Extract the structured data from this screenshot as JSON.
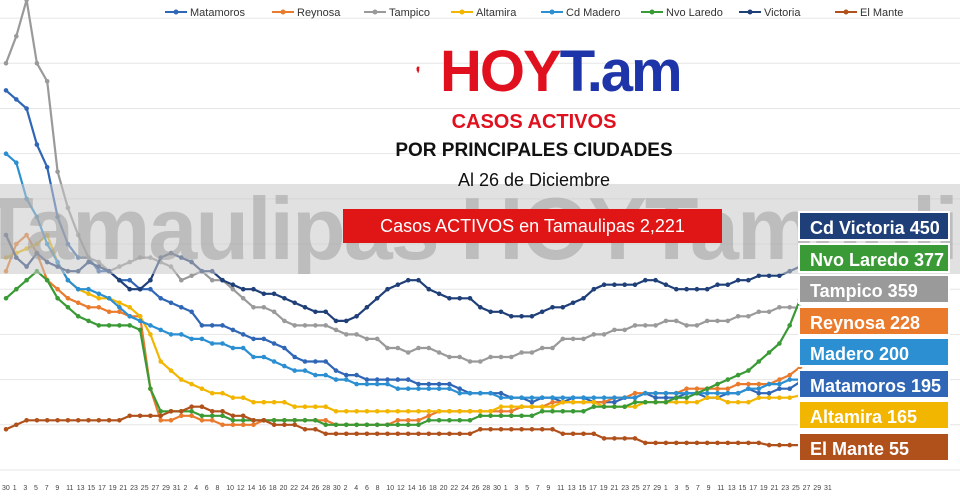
{
  "header": {
    "logo_text_a": "HOY",
    "logo_text_b": "T.am",
    "title": "CASOS ACTIVOS",
    "subtitle": "POR PRINCIPALES CIUDADES",
    "date": "Al 26 de Diciembre",
    "banner": "Casos ACTIVOS en Tamaulipas  2,221",
    "watermark": "Tamaulipas HOYTamaulipas HOYTam"
  },
  "totals": [
    {
      "label": "Cd Victoria 450",
      "color": "#1f3f78"
    },
    {
      "label": "Nvo Laredo 377",
      "color": "#3a9a35"
    },
    {
      "label": "Tampico 359",
      "color": "#9a9a9a"
    },
    {
      "label": "Reynosa 228",
      "color": "#ea7a2c"
    },
    {
      "label": "Madero 200",
      "color": "#2b8fd2"
    },
    {
      "label": "Matamoros 195",
      "color": "#2f66b6"
    },
    {
      "label": "Altamira 165",
      "color": "#f2b600"
    },
    {
      "label": "El Mante 55",
      "color": "#b0501a"
    }
  ],
  "chart_data": {
    "type": "line",
    "x_tick_labels": [
      "30",
      "1",
      "3",
      "5",
      "7",
      "9",
      "11",
      "13",
      "15",
      "17",
      "19",
      "21",
      "23",
      "25",
      "27",
      "29",
      "31",
      "2",
      "4",
      "6",
      "8",
      "10",
      "12",
      "14",
      "16",
      "18",
      "20",
      "22",
      "24",
      "26",
      "28",
      "30",
      "2",
      "4",
      "6",
      "8",
      "10",
      "12",
      "14",
      "16",
      "18",
      "20",
      "22",
      "24",
      "26",
      "28",
      "30",
      "1",
      "3",
      "5",
      "7",
      "9",
      "11",
      "13",
      "15",
      "17",
      "19",
      "21",
      "23",
      "25",
      "27",
      "29",
      "1",
      "3",
      "5",
      "7",
      "9",
      "11",
      "13",
      "15",
      "17",
      "19",
      "21",
      "23",
      "25",
      "27",
      "29",
      "31"
    ],
    "series": [
      {
        "name": "Matamoros",
        "color": "#2f66b6",
        "values": [
          840,
          820,
          800,
          720,
          670,
          560,
          500,
          470,
          470,
          440,
          440,
          420,
          420,
          400,
          400,
          380,
          370,
          360,
          350,
          320,
          320,
          320,
          310,
          300,
          290,
          290,
          280,
          270,
          250,
          240,
          240,
          240,
          220,
          210,
          210,
          200,
          200,
          200,
          200,
          200,
          190,
          190,
          190,
          190,
          180,
          170,
          170,
          170,
          170,
          160,
          160,
          150,
          160,
          160,
          150,
          160,
          160,
          150,
          150,
          150,
          160,
          160,
          170,
          160,
          160,
          160,
          170,
          170,
          160,
          160,
          170,
          170,
          180,
          170,
          170,
          180,
          180,
          195
        ]
      },
      {
        "name": "Reynosa",
        "color": "#ea7a2c",
        "values": [
          440,
          500,
          520,
          480,
          420,
          400,
          380,
          370,
          360,
          360,
          350,
          350,
          340,
          340,
          180,
          110,
          110,
          120,
          120,
          110,
          110,
          100,
          100,
          100,
          100,
          110,
          110,
          110,
          110,
          110,
          110,
          110,
          100,
          100,
          100,
          100,
          100,
          100,
          110,
          110,
          110,
          120,
          130,
          130,
          130,
          130,
          130,
          130,
          130,
          130,
          140,
          140,
          140,
          150,
          150,
          150,
          150,
          150,
          150,
          160,
          160,
          170,
          170,
          170,
          170,
          170,
          180,
          180,
          180,
          180,
          180,
          190,
          190,
          190,
          190,
          200,
          210,
          228
        ]
      },
      {
        "name": "Tampico",
        "color": "#9a9a9a",
        "values": [
          900,
          960,
          1040,
          900,
          860,
          660,
          580,
          520,
          470,
          460,
          440,
          450,
          460,
          470,
          470,
          460,
          450,
          420,
          430,
          440,
          420,
          420,
          400,
          380,
          360,
          360,
          350,
          330,
          320,
          320,
          320,
          320,
          310,
          300,
          300,
          290,
          290,
          270,
          270,
          260,
          270,
          270,
          260,
          250,
          250,
          240,
          240,
          250,
          250,
          250,
          260,
          260,
          270,
          270,
          290,
          290,
          290,
          300,
          300,
          310,
          310,
          320,
          320,
          320,
          330,
          330,
          320,
          320,
          330,
          330,
          330,
          340,
          340,
          350,
          350,
          360,
          360,
          359
        ]
      },
      {
        "name": "Altamira",
        "color": "#f2b600",
        "values": [
          470,
          480,
          490,
          500,
          520,
          460,
          420,
          400,
          390,
          380,
          380,
          370,
          360,
          340,
          300,
          240,
          220,
          200,
          190,
          180,
          170,
          170,
          160,
          160,
          150,
          150,
          150,
          150,
          140,
          140,
          140,
          140,
          130,
          130,
          130,
          130,
          130,
          130,
          130,
          130,
          130,
          130,
          130,
          130,
          130,
          130,
          130,
          130,
          140,
          140,
          140,
          140,
          140,
          140,
          150,
          150,
          150,
          150,
          140,
          140,
          140,
          140,
          150,
          150,
          150,
          150,
          150,
          150,
          160,
          160,
          150,
          150,
          150,
          160,
          160,
          160,
          160,
          165
        ]
      },
      {
        "name": "Cd Madero",
        "color": "#2b8fd2",
        "values": [
          700,
          680,
          600,
          560,
          500,
          460,
          420,
          400,
          400,
          390,
          380,
          360,
          340,
          330,
          320,
          310,
          300,
          300,
          290,
          290,
          280,
          280,
          270,
          270,
          250,
          250,
          240,
          230,
          220,
          220,
          210,
          210,
          200,
          200,
          190,
          190,
          190,
          190,
          180,
          180,
          180,
          180,
          180,
          180,
          170,
          170,
          170,
          170,
          160,
          160,
          160,
          160,
          160,
          160,
          160,
          160,
          160,
          160,
          160,
          160,
          160,
          160,
          170,
          170,
          170,
          170,
          170,
          170,
          170,
          170,
          170,
          170,
          180,
          180,
          190,
          190,
          200,
          200
        ]
      },
      {
        "name": "Nvo Laredo",
        "color": "#3a9a35",
        "values": [
          380,
          400,
          420,
          440,
          420,
          380,
          360,
          340,
          330,
          320,
          320,
          320,
          320,
          310,
          180,
          130,
          130,
          130,
          130,
          120,
          120,
          120,
          110,
          110,
          110,
          110,
          110,
          110,
          110,
          110,
          110,
          100,
          100,
          100,
          100,
          100,
          100,
          100,
          100,
          100,
          100,
          110,
          110,
          110,
          110,
          110,
          120,
          120,
          120,
          120,
          120,
          120,
          130,
          130,
          130,
          130,
          130,
          140,
          140,
          140,
          140,
          150,
          150,
          150,
          150,
          160,
          160,
          170,
          180,
          190,
          200,
          210,
          220,
          240,
          260,
          280,
          320,
          377
        ]
      },
      {
        "name": "Victoria",
        "color": "#1f3f78",
        "values": [
          520,
          470,
          450,
          480,
          460,
          450,
          440,
          440,
          460,
          450,
          440,
          420,
          400,
          400,
          420,
          470,
          480,
          470,
          460,
          440,
          440,
          420,
          410,
          400,
          400,
          390,
          390,
          380,
          370,
          360,
          350,
          350,
          330,
          330,
          340,
          360,
          380,
          400,
          410,
          420,
          420,
          400,
          390,
          380,
          380,
          380,
          360,
          350,
          350,
          340,
          340,
          340,
          350,
          360,
          360,
          370,
          380,
          400,
          410,
          410,
          410,
          410,
          420,
          420,
          410,
          400,
          400,
          400,
          400,
          410,
          410,
          420,
          420,
          430,
          430,
          430,
          440,
          450
        ]
      },
      {
        "name": "El Mante",
        "color": "#b0501a",
        "values": [
          90,
          100,
          110,
          110,
          110,
          110,
          110,
          110,
          110,
          110,
          110,
          110,
          120,
          120,
          120,
          120,
          130,
          130,
          140,
          140,
          130,
          130,
          120,
          120,
          110,
          110,
          100,
          100,
          100,
          90,
          90,
          80,
          80,
          80,
          80,
          80,
          80,
          80,
          80,
          80,
          80,
          80,
          80,
          80,
          80,
          80,
          90,
          90,
          90,
          90,
          90,
          90,
          90,
          90,
          80,
          80,
          80,
          80,
          70,
          70,
          70,
          70,
          60,
          60,
          60,
          60,
          60,
          60,
          60,
          60,
          60,
          60,
          60,
          60,
          55,
          55,
          55,
          55
        ]
      }
    ]
  }
}
